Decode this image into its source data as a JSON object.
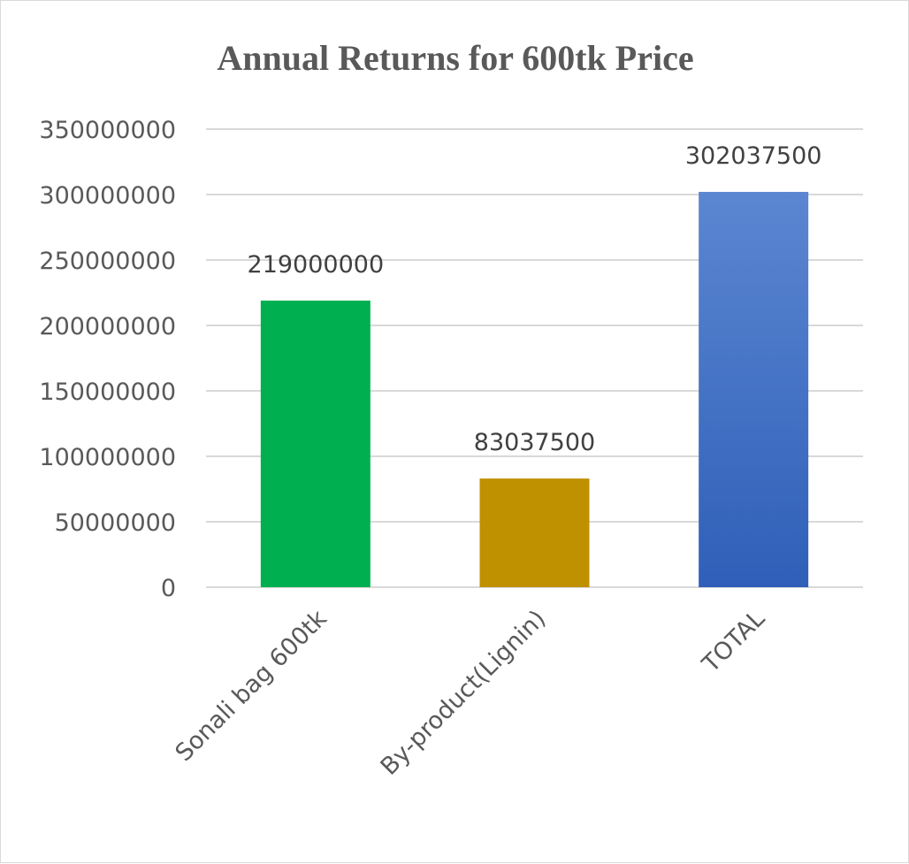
{
  "chart_data": {
    "type": "bar",
    "title": "Annual Returns for 600tk Price",
    "xlabel": "",
    "ylabel": "",
    "categories": [
      "Sonali bag 600tk",
      "By-product(Lignin)",
      "TOTAL"
    ],
    "values": [
      219000000,
      83037500,
      302037500
    ],
    "data_labels": [
      "219000000",
      "83037500",
      "302037500"
    ],
    "ylim": [
      0,
      350000000
    ],
    "yticks": [
      0,
      50000000,
      100000000,
      150000000,
      200000000,
      250000000,
      300000000,
      350000000
    ],
    "ytick_labels": [
      "0",
      "50000000",
      "100000000",
      "150000000",
      "200000000",
      "250000000",
      "300000000",
      "350000000"
    ],
    "grid": true,
    "legend": "none",
    "colors": [
      "#00b050",
      "#bf9000",
      "#4472c4"
    ],
    "gradient_bar_color_light": "#5b86d1",
    "gradient_bar_color_dark": "#2f5fb8"
  }
}
